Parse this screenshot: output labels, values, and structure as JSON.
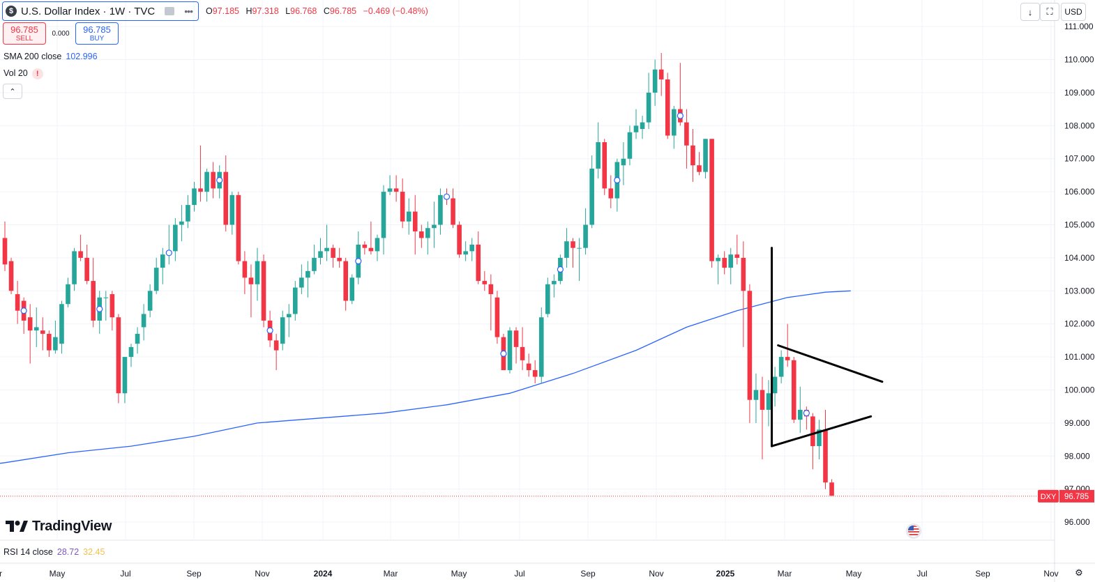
{
  "header": {
    "symbol_logo": "$",
    "symbol_title": "U.S. Dollar Index · 1W · TVC",
    "ohlc": {
      "o_label": "O",
      "o": "97.185",
      "h_label": "H",
      "h": "97.318",
      "l_label": "L",
      "l": "96.768",
      "c_label": "C",
      "c": "96.785",
      "change": "−0.469 (−0.48%)"
    }
  },
  "trade": {
    "sell_price": "96.785",
    "sell_label": "SELL",
    "spread": "0.000",
    "buy_price": "96.785",
    "buy_label": "BUY"
  },
  "indicators": {
    "sma_label": "SMA 200 close",
    "sma_value": "102.996",
    "vol_label": "Vol 20",
    "warn": "!"
  },
  "toolbar": {
    "collapse": "⌃",
    "download": "↓",
    "fullscreen": "⛶",
    "currency": "USD"
  },
  "branding": {
    "logo_text": "TradingView"
  },
  "rsi": {
    "label": "RSI 14 close",
    "value1": "28.72",
    "value2": "32.45"
  },
  "colors": {
    "up": "#26a69a",
    "down": "#f23645",
    "sma": "#2962ff",
    "grid": "#f0f3fa",
    "axis_text": "#131722"
  },
  "chart_data": {
    "type": "candlestick",
    "title": "U.S. Dollar Index · 1W · TVC",
    "ticker_label": "DXY",
    "last_price": "96.785",
    "ylim": [
      95.5,
      111.2
    ],
    "y_ticks": [
      "111.000",
      "110.000",
      "109.000",
      "108.000",
      "107.000",
      "106.000",
      "105.000",
      "104.000",
      "103.000",
      "102.000",
      "101.000",
      "100.000",
      "99.000",
      "98.000",
      "97.000",
      "96.000"
    ],
    "x_ticks": [
      "r",
      "May",
      "Jul",
      "Sep",
      "Nov",
      "2024",
      "Mar",
      "May",
      "Jul",
      "Sep",
      "Nov",
      "2025",
      "Mar",
      "May",
      "Jul",
      "Sep",
      "Nov"
    ],
    "candles": [
      {
        "o": 104.6,
        "h": 105.1,
        "l": 103.6,
        "c": 103.8
      },
      {
        "o": 103.9,
        "h": 104.0,
        "l": 102.9,
        "c": 103.0
      },
      {
        "o": 102.9,
        "h": 103.3,
        "l": 102.0,
        "c": 102.4
      },
      {
        "o": 102.7,
        "h": 102.8,
        "l": 101.7,
        "c": 102.1
      },
      {
        "o": 102.2,
        "h": 102.6,
        "l": 100.8,
        "c": 101.8
      },
      {
        "o": 101.8,
        "h": 102.5,
        "l": 101.3,
        "c": 101.9
      },
      {
        "o": 101.8,
        "h": 102.2,
        "l": 101.2,
        "c": 101.7
      },
      {
        "o": 101.7,
        "h": 101.8,
        "l": 101.0,
        "c": 101.2
      },
      {
        "o": 101.2,
        "h": 102.1,
        "l": 101.1,
        "c": 101.6
      },
      {
        "o": 101.4,
        "h": 102.7,
        "l": 101.1,
        "c": 102.6
      },
      {
        "o": 102.6,
        "h": 103.4,
        "l": 102.5,
        "c": 103.2
      },
      {
        "o": 103.2,
        "h": 104.3,
        "l": 103.0,
        "c": 104.2
      },
      {
        "o": 104.2,
        "h": 104.7,
        "l": 103.9,
        "c": 104.0
      },
      {
        "o": 104.0,
        "h": 104.4,
        "l": 103.2,
        "c": 103.3
      },
      {
        "o": 103.3,
        "h": 104.0,
        "l": 101.9,
        "c": 102.1
      },
      {
        "o": 102.1,
        "h": 103.0,
        "l": 101.7,
        "c": 102.8
      },
      {
        "o": 102.8,
        "h": 103.0,
        "l": 102.1,
        "c": 102.8
      },
      {
        "o": 102.9,
        "h": 103.0,
        "l": 101.8,
        "c": 102.2
      },
      {
        "o": 102.2,
        "h": 102.3,
        "l": 99.6,
        "c": 99.9
      },
      {
        "o": 99.9,
        "h": 101.0,
        "l": 99.6,
        "c": 101.0
      },
      {
        "o": 101.0,
        "h": 101.4,
        "l": 100.7,
        "c": 101.3
      },
      {
        "o": 101.4,
        "h": 101.9,
        "l": 101.1,
        "c": 101.7
      },
      {
        "o": 101.9,
        "h": 102.6,
        "l": 101.5,
        "c": 102.3
      },
      {
        "o": 102.4,
        "h": 103.2,
        "l": 102.2,
        "c": 103.0
      },
      {
        "o": 103.0,
        "h": 104.0,
        "l": 102.9,
        "c": 103.7
      },
      {
        "o": 103.7,
        "h": 104.3,
        "l": 103.2,
        "c": 104.1
      },
      {
        "o": 104.1,
        "h": 105.0,
        "l": 103.8,
        "c": 104.2
      },
      {
        "o": 104.2,
        "h": 105.2,
        "l": 103.9,
        "c": 105.0
      },
      {
        "o": 105.0,
        "h": 105.6,
        "l": 104.5,
        "c": 105.1
      },
      {
        "o": 105.1,
        "h": 105.9,
        "l": 104.9,
        "c": 105.6
      },
      {
        "o": 105.6,
        "h": 106.3,
        "l": 105.4,
        "c": 106.1
      },
      {
        "o": 106.1,
        "h": 107.4,
        "l": 105.7,
        "c": 106.0
      },
      {
        "o": 106.0,
        "h": 106.7,
        "l": 105.7,
        "c": 106.6
      },
      {
        "o": 106.6,
        "h": 106.9,
        "l": 105.8,
        "c": 106.1
      },
      {
        "o": 106.1,
        "h": 106.8,
        "l": 105.8,
        "c": 106.6
      },
      {
        "o": 106.6,
        "h": 107.1,
        "l": 104.8,
        "c": 105.0
      },
      {
        "o": 105.0,
        "h": 106.0,
        "l": 104.7,
        "c": 105.9
      },
      {
        "o": 105.9,
        "h": 106.0,
        "l": 103.8,
        "c": 103.9
      },
      {
        "o": 103.9,
        "h": 104.2,
        "l": 102.9,
        "c": 103.4
      },
      {
        "o": 103.4,
        "h": 103.8,
        "l": 102.2,
        "c": 103.2
      },
      {
        "o": 103.2,
        "h": 104.3,
        "l": 102.7,
        "c": 103.9
      },
      {
        "o": 103.9,
        "h": 104.1,
        "l": 101.9,
        "c": 102.1
      },
      {
        "o": 102.1,
        "h": 102.4,
        "l": 101.3,
        "c": 101.5
      },
      {
        "o": 101.5,
        "h": 101.7,
        "l": 100.6,
        "c": 101.2
      },
      {
        "o": 101.4,
        "h": 102.4,
        "l": 101.2,
        "c": 102.2
      },
      {
        "o": 102.2,
        "h": 102.6,
        "l": 101.6,
        "c": 102.3
      },
      {
        "o": 102.3,
        "h": 103.3,
        "l": 102.1,
        "c": 103.1
      },
      {
        "o": 103.1,
        "h": 103.8,
        "l": 102.9,
        "c": 103.4
      },
      {
        "o": 103.4,
        "h": 103.9,
        "l": 102.8,
        "c": 103.6
      },
      {
        "o": 103.6,
        "h": 104.4,
        "l": 103.5,
        "c": 104.0
      },
      {
        "o": 104.0,
        "h": 104.6,
        "l": 103.8,
        "c": 104.2
      },
      {
        "o": 104.2,
        "h": 105.0,
        "l": 103.9,
        "c": 104.3
      },
      {
        "o": 104.3,
        "h": 104.4,
        "l": 103.7,
        "c": 104.0
      },
      {
        "o": 104.0,
        "h": 104.3,
        "l": 103.7,
        "c": 103.9
      },
      {
        "o": 103.9,
        "h": 104.0,
        "l": 102.4,
        "c": 102.7
      },
      {
        "o": 102.7,
        "h": 103.5,
        "l": 102.6,
        "c": 103.4
      },
      {
        "o": 103.4,
        "h": 104.8,
        "l": 103.2,
        "c": 104.4
      },
      {
        "o": 104.4,
        "h": 104.5,
        "l": 104.1,
        "c": 104.3
      },
      {
        "o": 104.3,
        "h": 105.1,
        "l": 104.1,
        "c": 104.2
      },
      {
        "o": 104.2,
        "h": 104.7,
        "l": 103.9,
        "c": 104.6
      },
      {
        "o": 104.6,
        "h": 106.2,
        "l": 104.1,
        "c": 106.0
      },
      {
        "o": 106.0,
        "h": 106.5,
        "l": 105.9,
        "c": 106.1
      },
      {
        "o": 106.1,
        "h": 106.5,
        "l": 105.7,
        "c": 106.0
      },
      {
        "o": 106.0,
        "h": 106.4,
        "l": 104.9,
        "c": 105.1
      },
      {
        "o": 105.1,
        "h": 105.8,
        "l": 104.7,
        "c": 105.4
      },
      {
        "o": 105.4,
        "h": 105.9,
        "l": 104.1,
        "c": 104.8
      },
      {
        "o": 104.8,
        "h": 105.0,
        "l": 104.3,
        "c": 104.6
      },
      {
        "o": 104.6,
        "h": 105.1,
        "l": 104.1,
        "c": 104.9
      },
      {
        "o": 104.9,
        "h": 105.7,
        "l": 104.3,
        "c": 105.0
      },
      {
        "o": 105.0,
        "h": 106.1,
        "l": 104.7,
        "c": 105.9
      },
      {
        "o": 105.9,
        "h": 106.1,
        "l": 105.6,
        "c": 105.8
      },
      {
        "o": 105.8,
        "h": 106.1,
        "l": 104.9,
        "c": 105.0
      },
      {
        "o": 105.0,
        "h": 105.1,
        "l": 104.0,
        "c": 104.1
      },
      {
        "o": 104.1,
        "h": 104.5,
        "l": 103.9,
        "c": 104.2
      },
      {
        "o": 104.2,
        "h": 104.6,
        "l": 103.9,
        "c": 104.4
      },
      {
        "o": 104.4,
        "h": 104.8,
        "l": 103.2,
        "c": 103.3
      },
      {
        "o": 103.3,
        "h": 103.6,
        "l": 103.0,
        "c": 103.2
      },
      {
        "o": 103.2,
        "h": 103.5,
        "l": 101.8,
        "c": 102.9
      },
      {
        "o": 102.8,
        "h": 103.0,
        "l": 101.4,
        "c": 101.6
      },
      {
        "o": 101.6,
        "h": 101.7,
        "l": 100.6,
        "c": 100.6
      },
      {
        "o": 100.6,
        "h": 101.9,
        "l": 100.5,
        "c": 101.8
      },
      {
        "o": 101.8,
        "h": 101.9,
        "l": 100.8,
        "c": 101.3
      },
      {
        "o": 101.3,
        "h": 101.9,
        "l": 100.6,
        "c": 100.9
      },
      {
        "o": 100.8,
        "h": 101.1,
        "l": 100.4,
        "c": 100.6
      },
      {
        "o": 100.6,
        "h": 100.9,
        "l": 100.2,
        "c": 100.4
      },
      {
        "o": 100.4,
        "h": 102.5,
        "l": 100.2,
        "c": 102.2
      },
      {
        "o": 102.3,
        "h": 103.4,
        "l": 102.2,
        "c": 103.2
      },
      {
        "o": 103.2,
        "h": 103.5,
        "l": 102.8,
        "c": 103.3
      },
      {
        "o": 103.3,
        "h": 104.1,
        "l": 103.2,
        "c": 104.0
      },
      {
        "o": 104.0,
        "h": 104.9,
        "l": 103.7,
        "c": 104.5
      },
      {
        "o": 104.5,
        "h": 104.6,
        "l": 103.7,
        "c": 104.3
      },
      {
        "o": 104.3,
        "h": 104.6,
        "l": 103.3,
        "c": 104.3
      },
      {
        "o": 104.3,
        "h": 105.5,
        "l": 104.1,
        "c": 105.0
      },
      {
        "o": 105.0,
        "h": 107.1,
        "l": 104.9,
        "c": 106.7
      },
      {
        "o": 106.7,
        "h": 108.1,
        "l": 106.4,
        "c": 107.5
      },
      {
        "o": 107.5,
        "h": 107.6,
        "l": 105.9,
        "c": 106.1
      },
      {
        "o": 106.1,
        "h": 106.5,
        "l": 105.5,
        "c": 105.8
      },
      {
        "o": 105.8,
        "h": 107.0,
        "l": 105.4,
        "c": 106.9
      },
      {
        "o": 106.8,
        "h": 107.5,
        "l": 106.2,
        "c": 107.0
      },
      {
        "o": 107.0,
        "h": 108.0,
        "l": 106.8,
        "c": 107.8
      },
      {
        "o": 107.8,
        "h": 108.5,
        "l": 107.6,
        "c": 108.0
      },
      {
        "o": 107.9,
        "h": 108.3,
        "l": 107.6,
        "c": 108.1
      },
      {
        "o": 108.1,
        "h": 109.6,
        "l": 107.9,
        "c": 109.0
      },
      {
        "o": 109.0,
        "h": 110.0,
        "l": 108.6,
        "c": 109.7
      },
      {
        "o": 109.7,
        "h": 110.2,
        "l": 108.9,
        "c": 109.4
      },
      {
        "o": 109.4,
        "h": 109.6,
        "l": 107.6,
        "c": 107.7
      },
      {
        "o": 107.7,
        "h": 108.6,
        "l": 107.3,
        "c": 108.5
      },
      {
        "o": 108.5,
        "h": 109.9,
        "l": 108.0,
        "c": 108.1
      },
      {
        "o": 108.1,
        "h": 108.5,
        "l": 106.7,
        "c": 107.4
      },
      {
        "o": 107.4,
        "h": 107.9,
        "l": 106.3,
        "c": 106.8
      },
      {
        "o": 106.8,
        "h": 107.2,
        "l": 106.5,
        "c": 106.6
      },
      {
        "o": 106.6,
        "h": 107.6,
        "l": 106.4,
        "c": 107.6
      },
      {
        "o": 107.6,
        "h": 107.6,
        "l": 103.7,
        "c": 103.9
      },
      {
        "o": 103.9,
        "h": 104.1,
        "l": 103.2,
        "c": 104.0
      },
      {
        "o": 104.0,
        "h": 104.2,
        "l": 103.5,
        "c": 103.7
      },
      {
        "o": 103.7,
        "h": 104.3,
        "l": 103.2,
        "c": 104.1
      },
      {
        "o": 104.1,
        "h": 104.7,
        "l": 103.8,
        "c": 104.0
      },
      {
        "o": 104.0,
        "h": 104.5,
        "l": 101.3,
        "c": 103.0
      },
      {
        "o": 103.0,
        "h": 103.2,
        "l": 99.0,
        "c": 99.7
      },
      {
        "o": 99.7,
        "h": 100.5,
        "l": 99.0,
        "c": 100.0
      },
      {
        "o": 100.0,
        "h": 100.4,
        "l": 97.9,
        "c": 99.4
      },
      {
        "o": 99.4,
        "h": 100.3,
        "l": 98.9,
        "c": 99.9
      },
      {
        "o": 99.9,
        "h": 100.7,
        "l": 99.5,
        "c": 100.4
      },
      {
        "o": 100.4,
        "h": 101.2,
        "l": 100.2,
        "c": 101.0
      },
      {
        "o": 101.0,
        "h": 102.0,
        "l": 100.7,
        "c": 100.9
      },
      {
        "o": 100.9,
        "h": 101.0,
        "l": 99.0,
        "c": 99.1
      },
      {
        "o": 99.1,
        "h": 100.1,
        "l": 98.7,
        "c": 99.4
      },
      {
        "o": 99.4,
        "h": 99.5,
        "l": 98.8,
        "c": 99.2
      },
      {
        "o": 99.2,
        "h": 99.3,
        "l": 97.6,
        "c": 98.3
      },
      {
        "o": 98.3,
        "h": 99.1,
        "l": 97.9,
        "c": 98.8
      },
      {
        "o": 98.8,
        "h": 99.4,
        "l": 97.0,
        "c": 97.2
      },
      {
        "o": 97.2,
        "h": 97.3,
        "l": 96.8,
        "c": 96.8
      }
    ],
    "sma200": [
      [
        0,
        97.8
      ],
      [
        10,
        98.1
      ],
      [
        20,
        98.3
      ],
      [
        30,
        98.6
      ],
      [
        40,
        99.0
      ],
      [
        50,
        99.15
      ],
      [
        60,
        99.3
      ],
      [
        70,
        99.55
      ],
      [
        80,
        99.9
      ],
      [
        90,
        100.5
      ],
      [
        100,
        101.2
      ],
      [
        108,
        101.9
      ],
      [
        116,
        102.4
      ],
      [
        124,
        102.8
      ],
      [
        130,
        102.96
      ],
      [
        134,
        103.0
      ]
    ],
    "annotations": [
      {
        "type": "line",
        "x1": 121.5,
        "y1": 104.3,
        "x2": 121.5,
        "y2": 98.3
      },
      {
        "type": "line",
        "x1": 121.5,
        "y1": 98.3,
        "x2": 137.2,
        "y2": 99.2
      },
      {
        "type": "line",
        "x1": 122.5,
        "y1": 101.35,
        "x2": 139,
        "y2": 100.25
      }
    ],
    "event_markers": [
      3,
      15,
      26,
      34,
      42,
      56,
      70,
      79,
      88,
      97,
      107,
      127,
      135
    ],
    "grid": true,
    "legend": "top-left"
  }
}
